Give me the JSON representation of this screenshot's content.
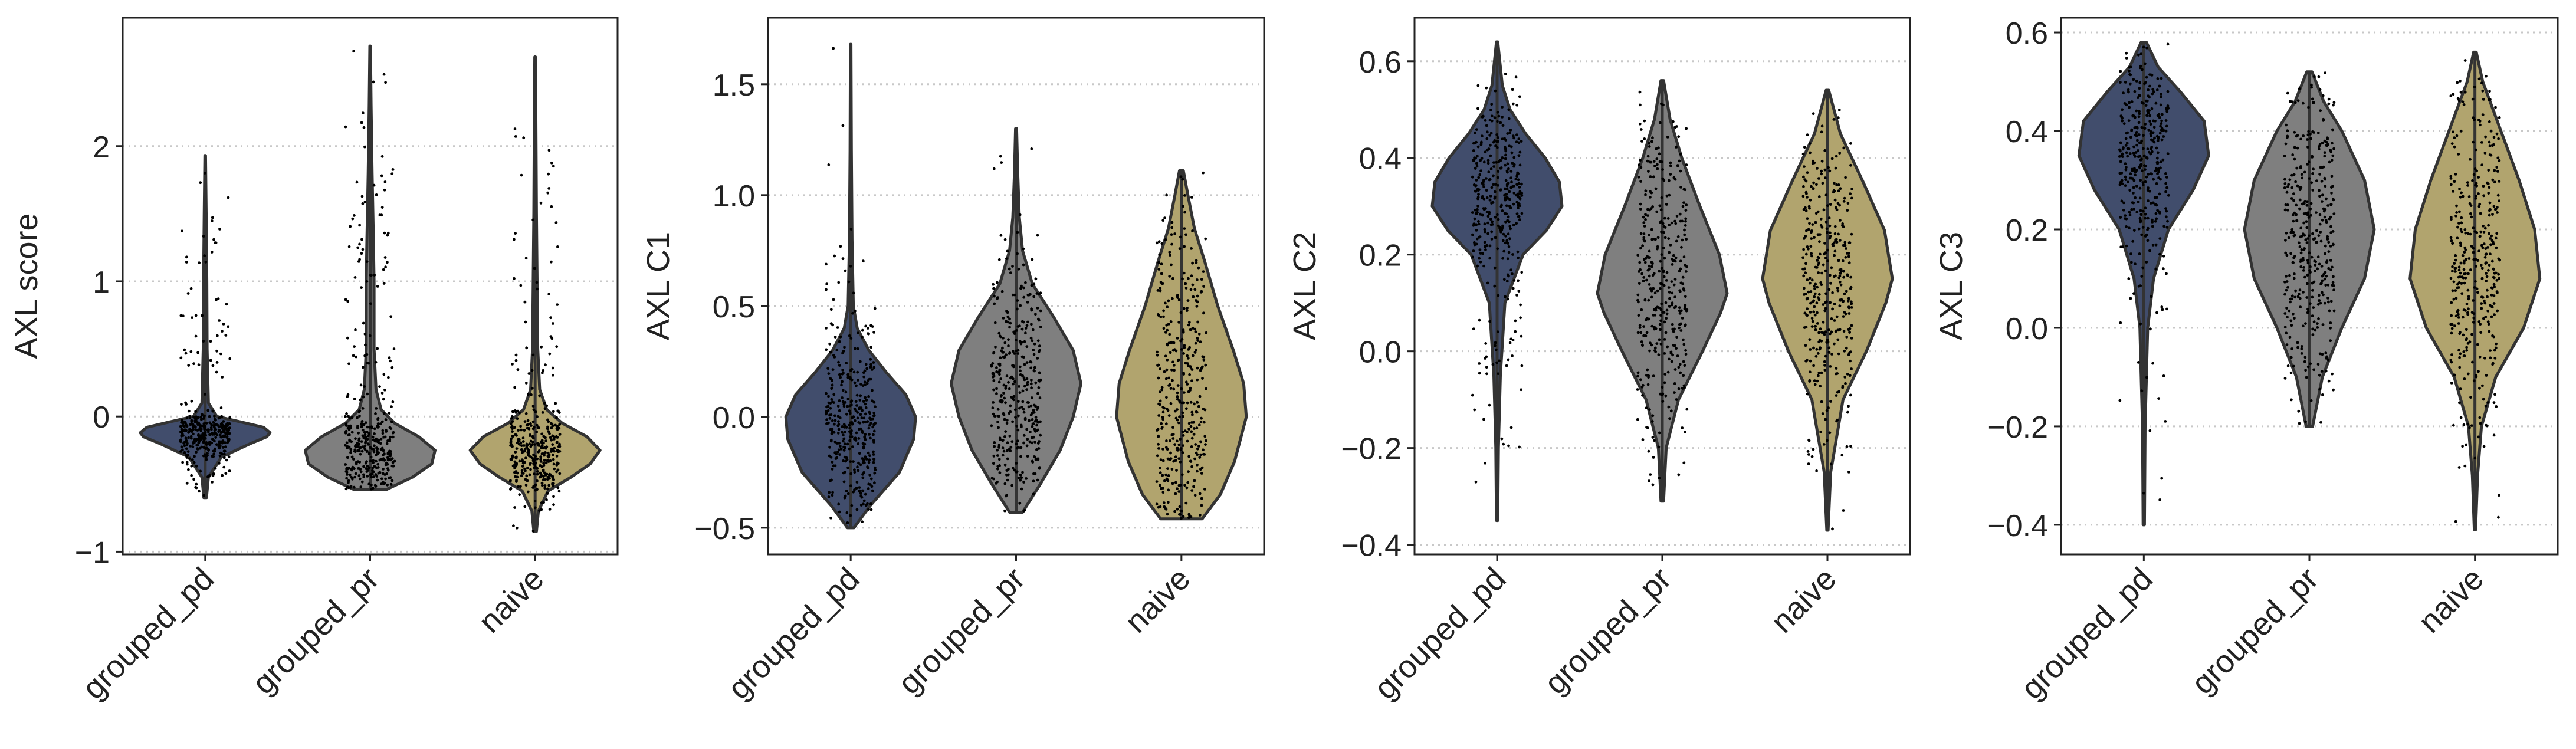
{
  "chart_data": [
    {
      "type": "violin",
      "ylabel": "AXL score",
      "categories": [
        "grouped_pd",
        "grouped_pr",
        "naive"
      ],
      "yticks": [
        -1,
        0,
        1,
        2
      ],
      "ylim": [
        -1.02,
        2.95
      ],
      "grid": "horizontal dotted",
      "series": [
        {
          "color": "#414d6c",
          "min": -0.6,
          "max": 1.93,
          "median": -0.12,
          "q1": -0.2,
          "q3": -0.06,
          "density": [
            [
              -0.6,
              0.02
            ],
            [
              -0.45,
              0.05
            ],
            [
              -0.3,
              0.25
            ],
            [
              -0.2,
              0.7
            ],
            [
              -0.15,
              0.95
            ],
            [
              -0.12,
              1.0
            ],
            [
              -0.08,
              0.9
            ],
            [
              -0.04,
              0.55
            ],
            [
              0.0,
              0.18
            ],
            [
              0.1,
              0.05
            ],
            [
              0.5,
              0.03
            ],
            [
              1.0,
              0.025
            ],
            [
              1.5,
              0.015
            ],
            [
              1.93,
              0.005
            ]
          ]
        },
        {
          "color": "#7f7f7f",
          "min": -0.54,
          "max": 2.74,
          "median": -0.22,
          "q1": -0.32,
          "q3": -0.1,
          "density": [
            [
              -0.54,
              0.25
            ],
            [
              -0.45,
              0.65
            ],
            [
              -0.35,
              0.95
            ],
            [
              -0.25,
              1.0
            ],
            [
              -0.15,
              0.75
            ],
            [
              -0.05,
              0.38
            ],
            [
              0.05,
              0.17
            ],
            [
              0.2,
              0.09
            ],
            [
              0.5,
              0.06
            ],
            [
              1.0,
              0.06
            ],
            [
              1.3,
              0.05
            ],
            [
              1.8,
              0.03
            ],
            [
              2.3,
              0.015
            ],
            [
              2.74,
              0.005
            ]
          ]
        },
        {
          "color": "#b1a46e",
          "min": -0.85,
          "max": 2.66,
          "median": -0.22,
          "q1": -0.32,
          "q3": -0.12,
          "density": [
            [
              -0.85,
              0.02
            ],
            [
              -0.7,
              0.05
            ],
            [
              -0.55,
              0.2
            ],
            [
              -0.45,
              0.55
            ],
            [
              -0.35,
              0.85
            ],
            [
              -0.25,
              1.0
            ],
            [
              -0.15,
              0.8
            ],
            [
              -0.05,
              0.42
            ],
            [
              0.05,
              0.18
            ],
            [
              0.2,
              0.07
            ],
            [
              0.5,
              0.04
            ],
            [
              1.0,
              0.03
            ],
            [
              1.5,
              0.02
            ],
            [
              2.2,
              0.012
            ],
            [
              2.66,
              0.005
            ]
          ]
        }
      ]
    },
    {
      "type": "violin",
      "ylabel": "AXL C1",
      "categories": [
        "grouped_pd",
        "grouped_pr",
        "naive"
      ],
      "yticks": [
        -0.5,
        0.0,
        0.5,
        1.0,
        1.5
      ],
      "ylim": [
        -0.62,
        1.8
      ],
      "grid": "horizontal dotted",
      "series": [
        {
          "color": "#414d6c",
          "min": -0.5,
          "max": 1.68,
          "median": 0.0,
          "q1": -0.12,
          "q3": 0.12,
          "density": [
            [
              -0.5,
              0.05
            ],
            [
              -0.4,
              0.3
            ],
            [
              -0.25,
              0.75
            ],
            [
              -0.1,
              0.97
            ],
            [
              0.0,
              1.0
            ],
            [
              0.1,
              0.85
            ],
            [
              0.2,
              0.55
            ],
            [
              0.3,
              0.28
            ],
            [
              0.4,
              0.1
            ],
            [
              0.5,
              0.04
            ],
            [
              0.8,
              0.02
            ],
            [
              1.2,
              0.01
            ],
            [
              1.68,
              0.004
            ]
          ]
        },
        {
          "color": "#7f7f7f",
          "min": -0.43,
          "max": 1.3,
          "median": 0.15,
          "q1": -0.05,
          "q3": 0.35,
          "density": [
            [
              -0.43,
              0.1
            ],
            [
              -0.3,
              0.38
            ],
            [
              -0.15,
              0.68
            ],
            [
              0.0,
              0.88
            ],
            [
              0.15,
              1.0
            ],
            [
              0.3,
              0.88
            ],
            [
              0.45,
              0.58
            ],
            [
              0.6,
              0.25
            ],
            [
              0.75,
              0.1
            ],
            [
              0.9,
              0.05
            ],
            [
              1.1,
              0.025
            ],
            [
              1.3,
              0.008
            ]
          ]
        },
        {
          "color": "#b1a46e",
          "min": -0.46,
          "max": 1.11,
          "median": 0.15,
          "q1": -0.1,
          "q3": 0.4,
          "density": [
            [
              -0.46,
              0.32
            ],
            [
              -0.35,
              0.6
            ],
            [
              -0.2,
              0.82
            ],
            [
              0.0,
              1.0
            ],
            [
              0.15,
              0.96
            ],
            [
              0.3,
              0.8
            ],
            [
              0.5,
              0.56
            ],
            [
              0.7,
              0.36
            ],
            [
              0.85,
              0.2
            ],
            [
              1.0,
              0.1
            ],
            [
              1.11,
              0.03
            ]
          ]
        }
      ]
    },
    {
      "type": "violin",
      "ylabel": "AXL C2",
      "categories": [
        "grouped_pd",
        "grouped_pr",
        "naive"
      ],
      "yticks": [
        -0.4,
        -0.2,
        0.0,
        0.2,
        0.4,
        0.6
      ],
      "ylim": [
        -0.42,
        0.69
      ],
      "grid": "horizontal dotted",
      "series": [
        {
          "color": "#414d6c",
          "min": -0.35,
          "max": 0.64,
          "median": 0.3,
          "q1": 0.24,
          "q3": 0.37,
          "density": [
            [
              -0.35,
              0.01
            ],
            [
              -0.2,
              0.02
            ],
            [
              -0.05,
              0.05
            ],
            [
              0.1,
              0.12
            ],
            [
              0.2,
              0.4
            ],
            [
              0.25,
              0.76
            ],
            [
              0.3,
              1.0
            ],
            [
              0.35,
              0.96
            ],
            [
              0.4,
              0.74
            ],
            [
              0.45,
              0.44
            ],
            [
              0.5,
              0.2
            ],
            [
              0.55,
              0.08
            ],
            [
              0.64,
              0.01
            ]
          ]
        },
        {
          "color": "#7f7f7f",
          "min": -0.31,
          "max": 0.56,
          "median": 0.1,
          "q1": 0.0,
          "q3": 0.2,
          "density": [
            [
              -0.31,
              0.02
            ],
            [
              -0.2,
              0.06
            ],
            [
              -0.1,
              0.25
            ],
            [
              0.0,
              0.62
            ],
            [
              0.08,
              0.9
            ],
            [
              0.12,
              1.0
            ],
            [
              0.2,
              0.88
            ],
            [
              0.3,
              0.58
            ],
            [
              0.4,
              0.3
            ],
            [
              0.48,
              0.12
            ],
            [
              0.56,
              0.02
            ]
          ]
        },
        {
          "color": "#b1a46e",
          "min": -0.37,
          "max": 0.54,
          "median": 0.15,
          "q1": 0.05,
          "q3": 0.25,
          "density": [
            [
              -0.37,
              0.01
            ],
            [
              -0.25,
              0.05
            ],
            [
              -0.1,
              0.24
            ],
            [
              0.0,
              0.6
            ],
            [
              0.1,
              0.9
            ],
            [
              0.15,
              1.0
            ],
            [
              0.25,
              0.88
            ],
            [
              0.35,
              0.55
            ],
            [
              0.45,
              0.2
            ],
            [
              0.54,
              0.02
            ]
          ]
        }
      ]
    },
    {
      "type": "violin",
      "ylabel": "AXL C3",
      "categories": [
        "grouped_pd",
        "grouped_pr",
        "naive"
      ],
      "yticks": [
        -0.4,
        -0.2,
        0.0,
        0.2,
        0.4,
        0.6
      ],
      "ylim": [
        -0.46,
        0.63
      ],
      "grid": "horizontal dotted",
      "series": [
        {
          "color": "#414d6c",
          "min": -0.4,
          "max": 0.58,
          "median": 0.35,
          "q1": 0.28,
          "q3": 0.42,
          "density": [
            [
              -0.4,
              0.01
            ],
            [
              -0.2,
              0.02
            ],
            [
              0.0,
              0.06
            ],
            [
              0.1,
              0.15
            ],
            [
              0.2,
              0.38
            ],
            [
              0.28,
              0.76
            ],
            [
              0.35,
              1.0
            ],
            [
              0.42,
              0.93
            ],
            [
              0.48,
              0.56
            ],
            [
              0.53,
              0.22
            ],
            [
              0.58,
              0.04
            ]
          ]
        },
        {
          "color": "#7f7f7f",
          "min": -0.2,
          "max": 0.52,
          "median": 0.2,
          "q1": 0.1,
          "q3": 0.3,
          "density": [
            [
              -0.2,
              0.05
            ],
            [
              -0.1,
              0.2
            ],
            [
              0.0,
              0.5
            ],
            [
              0.1,
              0.85
            ],
            [
              0.2,
              1.0
            ],
            [
              0.3,
              0.85
            ],
            [
              0.4,
              0.5
            ],
            [
              0.46,
              0.22
            ],
            [
              0.52,
              0.04
            ]
          ]
        },
        {
          "color": "#b1a46e",
          "min": -0.41,
          "max": 0.56,
          "median": 0.12,
          "q1": 0.02,
          "q3": 0.25,
          "density": [
            [
              -0.41,
              0.01
            ],
            [
              -0.3,
              0.04
            ],
            [
              -0.2,
              0.1
            ],
            [
              -0.1,
              0.32
            ],
            [
              0.0,
              0.75
            ],
            [
              0.1,
              1.0
            ],
            [
              0.2,
              0.92
            ],
            [
              0.3,
              0.68
            ],
            [
              0.4,
              0.4
            ],
            [
              0.5,
              0.12
            ],
            [
              0.56,
              0.02
            ]
          ]
        }
      ]
    }
  ]
}
